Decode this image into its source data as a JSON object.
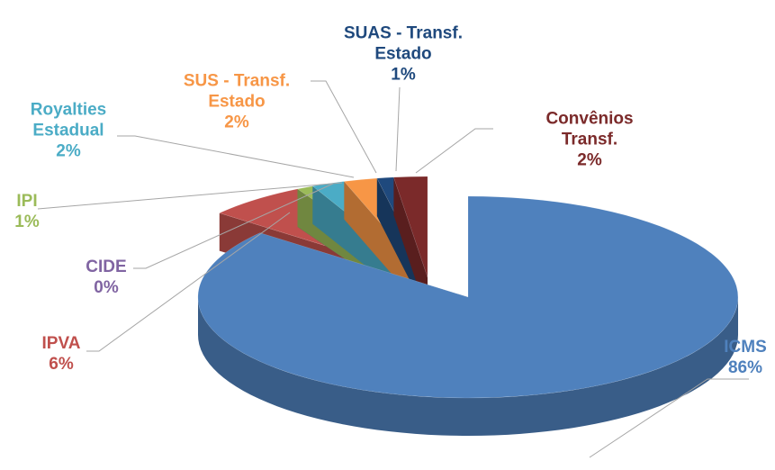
{
  "chart_data": {
    "type": "pie",
    "categories": [
      "ICMS",
      "IPVA",
      "CIDE",
      "IPI",
      "Royalties\nEstadual",
      "SUS - Transf.\nEstado",
      "SUAS - Transf.\nEstado",
      "Convênios\nTransf."
    ],
    "values": [
      86,
      6,
      0,
      1,
      2,
      2,
      1,
      2
    ],
    "value_labels": [
      "86%",
      "6%",
      "0%",
      "1%",
      "2%",
      "2%",
      "1%",
      "2%"
    ],
    "colors": [
      "#4f81bd",
      "#c0504d",
      "#8064a2",
      "#9bbb59",
      "#4bacc6",
      "#f79646",
      "#1f497d",
      "#7b2a2a"
    ]
  }
}
